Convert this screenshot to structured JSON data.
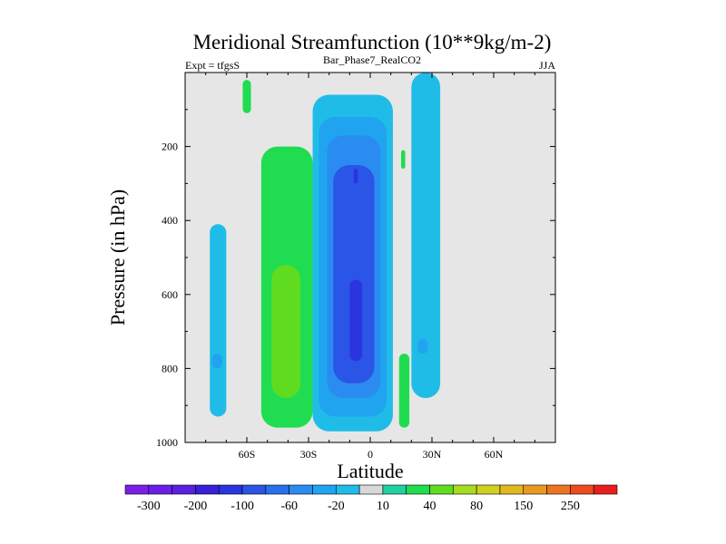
{
  "chart_data": {
    "type": "heatmap",
    "title": "Meridional Streamfunction (10**9kg/m-2)",
    "left_string": "Expt = tfgsS",
    "center_string": "Bar_Phase7_RealCO2",
    "right_string": "JJA",
    "xlabel": "Latitude",
    "ylabel": "Pressure (in hPa)",
    "xlim": [
      -90,
      90
    ],
    "ylim": [
      1000,
      0
    ],
    "x_ticks": [
      {
        "value": -60,
        "label": "60S"
      },
      {
        "value": -30,
        "label": "30S"
      },
      {
        "value": 0,
        "label": "0"
      },
      {
        "value": 30,
        "label": "30N"
      },
      {
        "value": 60,
        "label": "60N"
      }
    ],
    "y_ticks": [
      {
        "value": 200,
        "label": "200"
      },
      {
        "value": 400,
        "label": "400"
      },
      {
        "value": 600,
        "label": "600"
      },
      {
        "value": 800,
        "label": "800"
      },
      {
        "value": 1000,
        "label": "1000"
      }
    ],
    "background_color": "#e6e6e6",
    "colorbar": {
      "colors": [
        "#7a1ee8",
        "#6a1ee8",
        "#5a1fe0",
        "#3a1fd8",
        "#2a35e0",
        "#2a55e6",
        "#2a70ec",
        "#2a8cf0",
        "#20a4f0",
        "#20bce8",
        "#d8d8d8",
        "#20d0a0",
        "#20dc50",
        "#60dc20",
        "#a8dc20",
        "#d0d020",
        "#e0b820",
        "#e89a20",
        "#ec7420",
        "#ec4c20",
        "#e81e1e"
      ],
      "labels": [
        "-300",
        "-200",
        "-100",
        "-60",
        "-20",
        "10",
        "40",
        "80",
        "150",
        "250"
      ]
    },
    "cells": [
      {
        "lat": [
          -78,
          -70
        ],
        "p": [
          410,
          930
        ],
        "value": -20
      },
      {
        "lat": [
          -77,
          -72
        ],
        "p": [
          760,
          800
        ],
        "value": -30
      },
      {
        "lat": [
          -62,
          -58
        ],
        "p": [
          20,
          110
        ],
        "value": 20
      },
      {
        "lat": [
          -53,
          -28
        ],
        "p": [
          200,
          960
        ],
        "value": 20
      },
      {
        "lat": [
          -48,
          -34
        ],
        "p": [
          520,
          880
        ],
        "value": 40
      },
      {
        "lat": [
          -28,
          11
        ],
        "p": [
          60,
          970
        ],
        "value": -20
      },
      {
        "lat": [
          -25,
          8
        ],
        "p": [
          120,
          930
        ],
        "value": -40
      },
      {
        "lat": [
          -21,
          5
        ],
        "p": [
          170,
          880
        ],
        "value": -60
      },
      {
        "lat": [
          -18,
          2
        ],
        "p": [
          250,
          840
        ],
        "value": -100
      },
      {
        "lat": [
          -10,
          -4
        ],
        "p": [
          560,
          780
        ],
        "value": -150
      },
      {
        "lat": [
          -8,
          -6
        ],
        "p": [
          260,
          300
        ],
        "value": -150
      },
      {
        "lat": [
          14,
          19
        ],
        "p": [
          760,
          960
        ],
        "value": 20
      },
      {
        "lat": [
          15,
          17
        ],
        "p": [
          210,
          260
        ],
        "value": 20
      },
      {
        "lat": [
          20,
          34
        ],
        "p": [
          0,
          880
        ],
        "value": -20
      },
      {
        "lat": [
          23,
          28
        ],
        "p": [
          720,
          760
        ],
        "value": -30
      }
    ]
  }
}
